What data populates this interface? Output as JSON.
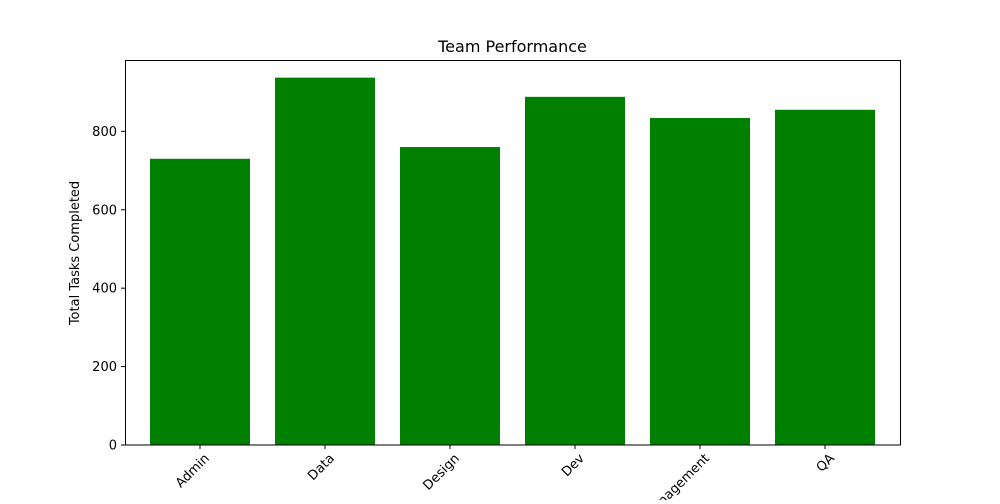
{
  "chart_data": {
    "type": "bar",
    "title": "Team Performance",
    "xlabel": "",
    "ylabel": "Total Tasks Completed",
    "categories": [
      "Admin",
      "Data",
      "Design",
      "Dev",
      "Management",
      "QA"
    ],
    "values": [
      730,
      937,
      760,
      888,
      834,
      855
    ],
    "ylim": [
      0,
      982
    ],
    "yticks": [
      0,
      200,
      400,
      600,
      800
    ],
    "bar_color": "#008000",
    "grid": false,
    "legend": "none"
  }
}
